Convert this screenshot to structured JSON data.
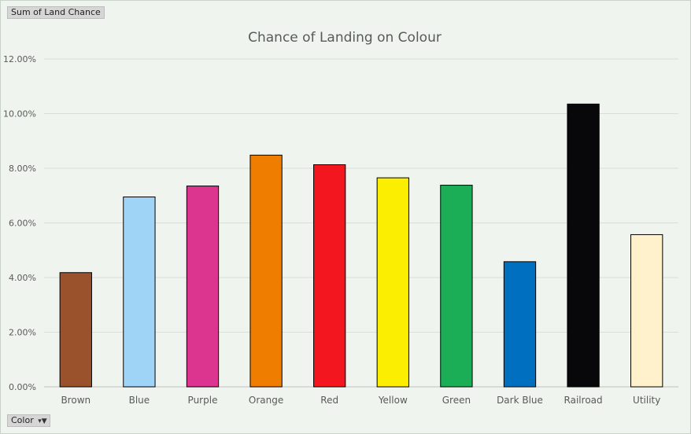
{
  "pivot": {
    "value_field_label": "Sum of Land Chance",
    "axis_field_label": "Color"
  },
  "chart_data": {
    "type": "bar",
    "title": "Chance of Landing on Colour",
    "xlabel": "",
    "ylabel": "",
    "ylim": [
      0,
      0.12
    ],
    "yticks": [
      "0.00%",
      "2.00%",
      "4.00%",
      "6.00%",
      "8.00%",
      "10.00%",
      "12.00%"
    ],
    "grid": true,
    "legend": "none",
    "categories": [
      "Brown",
      "Blue",
      "Purple",
      "Orange",
      "Red",
      "Yellow",
      "Green",
      "Dark Blue",
      "Railroad",
      "Utility"
    ],
    "values": [
      0.0418,
      0.0695,
      0.0735,
      0.0848,
      0.0813,
      0.0765,
      0.0738,
      0.0458,
      0.1035,
      0.0557
    ],
    "colors": [
      "#9a522d",
      "#9fd4f6",
      "#db358f",
      "#ef7d00",
      "#f4161f",
      "#fcee00",
      "#1bae56",
      "#006fc0",
      "#08080b",
      "#fff1cc"
    ]
  }
}
